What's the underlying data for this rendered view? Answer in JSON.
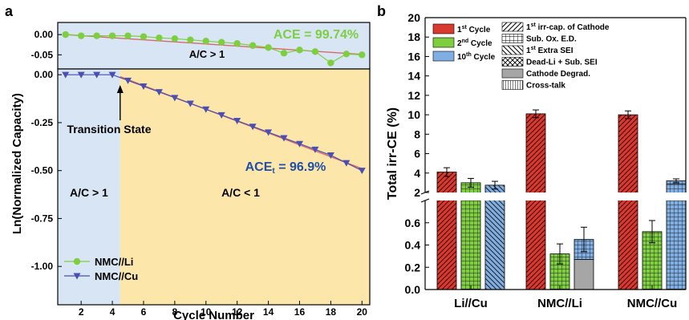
{
  "panels": {
    "a_letter": "a",
    "b_letter": "b"
  },
  "chart_data": [
    {
      "type": "line",
      "panel": "a-top",
      "xlim": [
        0.5,
        20.5
      ],
      "ylim": [
        -0.085,
        0.03
      ],
      "yticks": [
        0.0,
        -0.05
      ],
      "ytick_labels": [
        "0.00",
        "-0.05"
      ],
      "region_label": "A/C > 1",
      "annotation": "ACE = 99.74%",
      "annotation_color": "#7dcf3f",
      "background": "#d7e5f5",
      "series": [
        {
          "name": "NMC//Li",
          "marker": "circle",
          "color": "#7dcf3f",
          "x": [
            1,
            2,
            3,
            4,
            5,
            6,
            7,
            8,
            9,
            10,
            11,
            12,
            13,
            14,
            15,
            16,
            17,
            18,
            19,
            20
          ],
          "y": [
            0.0,
            -0.003,
            -0.003,
            -0.003,
            -0.003,
            -0.005,
            -0.008,
            -0.01,
            -0.013,
            -0.016,
            -0.019,
            -0.022,
            -0.027,
            -0.032,
            -0.046,
            -0.038,
            -0.042,
            -0.07,
            -0.048,
            -0.05
          ]
        }
      ],
      "fit_line": {
        "color": "#d86a6a",
        "x": [
          1,
          20
        ],
        "y": [
          0.0,
          -0.049
        ]
      }
    },
    {
      "type": "line",
      "panel": "a-bottom",
      "xlim": [
        0.5,
        20.5
      ],
      "ylim": [
        -1.2,
        0.03
      ],
      "xticks": [
        2,
        4,
        6,
        8,
        10,
        12,
        14,
        16,
        18,
        20
      ],
      "xtick_labels": [
        "2",
        "4",
        "6",
        "8",
        "10",
        "12",
        "14",
        "16",
        "18",
        "20"
      ],
      "yticks": [
        0.0,
        -0.25,
        -0.5,
        -0.75,
        -1.0
      ],
      "ytick_labels": [
        "0.00",
        "-0.25",
        "-0.50",
        "-0.75",
        "-1.00"
      ],
      "xlabel": "Cycle Number",
      "ylabel": "Ln(Normalized Capacity)",
      "regions": [
        {
          "from": 0.5,
          "to": 4.5,
          "color": "#d7e5f5",
          "label": "A/C > 1"
        },
        {
          "from": 4.5,
          "to": 20.5,
          "color": "#fde6a9",
          "label": "A/C < 1"
        }
      ],
      "transition_label": "Transition State",
      "transition_x": 4.5,
      "annotation": "ACEt = 96.9%",
      "annotation_main": "ACE",
      "annotation_sub": "t",
      "annotation_rest": " = 96.9%",
      "annotation_color": "#1f4fa8",
      "series": [
        {
          "name": "NMC//Cu",
          "marker": "triangle-down",
          "color": "#4a4fb3",
          "x": [
            1,
            2,
            3,
            4,
            5,
            6,
            7,
            8,
            9,
            10,
            11,
            12,
            13,
            14,
            15,
            16,
            17,
            18,
            19,
            20
          ],
          "y": [
            0.0,
            0.0,
            0.0,
            0.0,
            -0.03,
            -0.06,
            -0.09,
            -0.12,
            -0.15,
            -0.18,
            -0.21,
            -0.24,
            -0.27,
            -0.3,
            -0.33,
            -0.36,
            -0.39,
            -0.42,
            -0.46,
            -0.5
          ]
        }
      ],
      "fit_line": {
        "color": "#d86a6a",
        "x": [
          4.5,
          20
        ],
        "y": [
          -0.01,
          -0.49
        ]
      },
      "legend": {
        "placement": "bottom-left",
        "entries": [
          {
            "label": "NMC//Li",
            "color": "#7dcf3f",
            "marker": "circle"
          },
          {
            "label": "NMC//Cu",
            "color": "#4a4fb3",
            "marker": "triangle-down"
          }
        ]
      }
    },
    {
      "type": "bar",
      "panel": "b",
      "ylabel": "Total irr-CE (%)",
      "categories": [
        "Li//Cu",
        "NMC//Li",
        "NMC//Cu"
      ],
      "broken_axis": true,
      "upper_ylim": [
        2,
        20
      ],
      "upper_yticks": [
        2,
        4,
        6,
        8,
        10,
        12,
        14,
        16,
        18,
        20
      ],
      "upper_ytick_labels": [
        "2",
        "4",
        "6",
        "8",
        "10",
        "12",
        "14",
        "16",
        "18",
        "20"
      ],
      "lower_ylim": [
        0,
        0.8
      ],
      "lower_yticks": [
        0.0,
        0.2,
        0.4,
        0.6
      ],
      "lower_ytick_labels": [
        "0.0",
        "0.2",
        "0.4",
        "0.6"
      ],
      "series": [
        {
          "name": "1st Cycle",
          "color": "#d93a2e",
          "values": [
            4.1,
            10.1,
            10.0
          ],
          "errors": [
            0.45,
            0.4,
            0.4
          ]
        },
        {
          "name": "2nd Cycle",
          "color": "#7dcf3f",
          "values": [
            3.0,
            0.32,
            0.52
          ],
          "errors": [
            0.45,
            0.09,
            0.1
          ]
        },
        {
          "name": "10th Cycle",
          "color": "#7faee3",
          "values": [
            2.75,
            0.45,
            3.2
          ],
          "errors": [
            0.4,
            0.11,
            0.2
          ]
        }
      ],
      "nmc_li_10th_stack": [
        {
          "component": "Cathode Degrad.",
          "value": 0.27
        },
        {
          "component": "Sub. Ox. E.D.",
          "value": 0.18
        }
      ],
      "legend_colors": [
        {
          "base": "1",
          "sup": "st",
          "rest": " Cycle",
          "color": "#d93a2e"
        },
        {
          "base": "2",
          "sup": "nd",
          "rest": " Cycle",
          "color": "#7dcf3f"
        },
        {
          "base": "10",
          "sup": "th",
          "rest": " Cycle",
          "color": "#7faee3"
        }
      ],
      "legend_patterns": [
        {
          "pattern": "diag",
          "base": "1",
          "sup": "st",
          "rest": " irr-cap. of Cathode"
        },
        {
          "pattern": "grid",
          "base": "",
          "sup": "",
          "rest": "Sub. Ox. E.D."
        },
        {
          "pattern": "back",
          "base": "1",
          "sup": "st",
          "rest": " Extra SEI"
        },
        {
          "pattern": "cross",
          "base": "",
          "sup": "",
          "rest": "Dead-Li + Sub. SEI"
        },
        {
          "pattern": "gray",
          "base": "",
          "sup": "",
          "rest": "Cathode Degrad."
        },
        {
          "pattern": "vert",
          "base": "",
          "sup": "",
          "rest": "Cross-talk"
        }
      ]
    }
  ]
}
